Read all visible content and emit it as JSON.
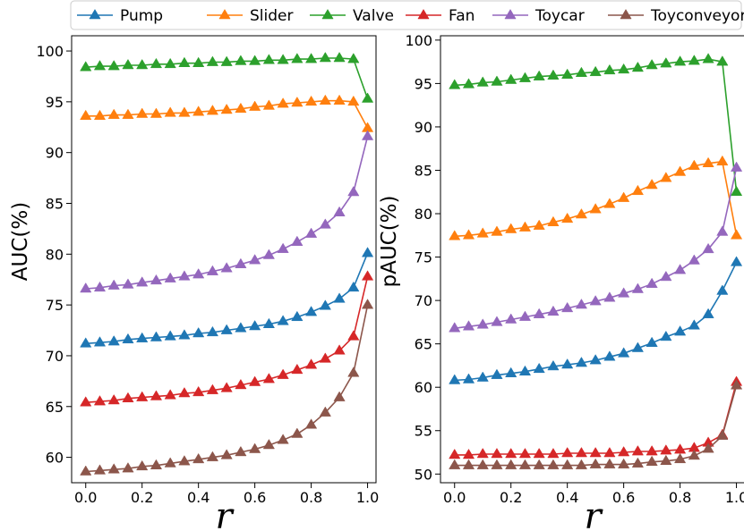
{
  "legend": {
    "entries": [
      {
        "name": "Pump",
        "color": "#1f77b4"
      },
      {
        "name": "Slider",
        "color": "#ff7f0e"
      },
      {
        "name": "Valve",
        "color": "#2ca02c"
      },
      {
        "name": "Fan",
        "color": "#d62728"
      },
      {
        "name": "Toycar",
        "color": "#9467bd"
      },
      {
        "name": "Toyconveyor",
        "color": "#8c564b"
      }
    ],
    "placement": "top-center"
  },
  "chart_data": [
    {
      "type": "line",
      "xlabel": "r",
      "ylabel": "AUC(%)",
      "xlim": [
        -0.05,
        1.03
      ],
      "ylim": [
        57.5,
        101.5
      ],
      "xticks": [
        "0.0",
        "0.2",
        "0.4",
        "0.6",
        "0.8",
        "1.0"
      ],
      "yticks": [
        "60",
        "65",
        "70",
        "75",
        "80",
        "85",
        "90",
        "95",
        "100"
      ],
      "marker": "triangle",
      "grid": false,
      "x": [
        0.0,
        0.05,
        0.1,
        0.15,
        0.2,
        0.25,
        0.3,
        0.35,
        0.4,
        0.45,
        0.5,
        0.55,
        0.6,
        0.65,
        0.7,
        0.75,
        0.8,
        0.85,
        0.9,
        0.95,
        1.0
      ],
      "series": [
        {
          "name": "Pump",
          "color": "#1f77b4",
          "values": [
            71.2,
            71.3,
            71.4,
            71.6,
            71.7,
            71.8,
            71.9,
            72.0,
            72.2,
            72.3,
            72.5,
            72.7,
            72.9,
            73.1,
            73.4,
            73.8,
            74.3,
            74.9,
            75.6,
            76.7,
            80.1
          ]
        },
        {
          "name": "Slider",
          "color": "#ff7f0e",
          "values": [
            93.6,
            93.6,
            93.7,
            93.7,
            93.8,
            93.8,
            93.9,
            93.9,
            94.0,
            94.1,
            94.2,
            94.3,
            94.5,
            94.6,
            94.8,
            94.9,
            95.0,
            95.1,
            95.1,
            95.0,
            92.4
          ]
        },
        {
          "name": "Valve",
          "color": "#2ca02c",
          "values": [
            98.4,
            98.5,
            98.5,
            98.6,
            98.6,
            98.7,
            98.7,
            98.8,
            98.8,
            98.9,
            98.9,
            99.0,
            99.0,
            99.1,
            99.1,
            99.2,
            99.2,
            99.3,
            99.3,
            99.2,
            95.3
          ]
        },
        {
          "name": "Fan",
          "color": "#d62728",
          "values": [
            65.4,
            65.5,
            65.6,
            65.8,
            65.9,
            66.0,
            66.1,
            66.3,
            66.4,
            66.6,
            66.8,
            67.1,
            67.4,
            67.7,
            68.1,
            68.6,
            69.1,
            69.7,
            70.5,
            71.9,
            77.8
          ]
        },
        {
          "name": "Toycar",
          "color": "#9467bd",
          "values": [
            76.6,
            76.7,
            76.9,
            77.0,
            77.2,
            77.4,
            77.6,
            77.8,
            78.0,
            78.3,
            78.6,
            79.0,
            79.4,
            79.9,
            80.5,
            81.2,
            82.0,
            82.9,
            84.1,
            86.1,
            91.6
          ]
        },
        {
          "name": "Toyconveyor",
          "color": "#8c564b",
          "values": [
            58.6,
            58.7,
            58.8,
            58.9,
            59.1,
            59.2,
            59.4,
            59.6,
            59.8,
            60.0,
            60.2,
            60.5,
            60.8,
            61.2,
            61.7,
            62.3,
            63.2,
            64.4,
            65.9,
            68.3,
            75.0
          ]
        }
      ]
    },
    {
      "type": "line",
      "xlabel": "r",
      "ylabel": "pAUC(%)",
      "xlim": [
        -0.05,
        1.03
      ],
      "ylim": [
        49,
        100.5
      ],
      "xticks": [
        "0.0",
        "0.2",
        "0.4",
        "0.6",
        "0.8",
        "1.0"
      ],
      "yticks": [
        "50",
        "55",
        "60",
        "65",
        "70",
        "75",
        "80",
        "85",
        "90",
        "95",
        "100"
      ],
      "marker": "triangle",
      "grid": false,
      "x": [
        0.0,
        0.05,
        0.1,
        0.15,
        0.2,
        0.25,
        0.3,
        0.35,
        0.4,
        0.45,
        0.5,
        0.55,
        0.6,
        0.65,
        0.7,
        0.75,
        0.8,
        0.85,
        0.9,
        0.95,
        1.0
      ],
      "series": [
        {
          "name": "Pump",
          "color": "#1f77b4",
          "values": [
            60.8,
            60.9,
            61.1,
            61.4,
            61.6,
            61.8,
            62.1,
            62.4,
            62.6,
            62.8,
            63.1,
            63.5,
            63.9,
            64.5,
            65.1,
            65.8,
            66.4,
            67.1,
            68.4,
            71.1,
            74.4
          ]
        },
        {
          "name": "Slider",
          "color": "#ff7f0e",
          "values": [
            77.4,
            77.5,
            77.7,
            77.9,
            78.2,
            78.4,
            78.6,
            79.0,
            79.4,
            79.9,
            80.5,
            81.1,
            81.8,
            82.6,
            83.3,
            84.1,
            84.8,
            85.5,
            85.8,
            86.0,
            77.5
          ]
        },
        {
          "name": "Valve",
          "color": "#2ca02c",
          "values": [
            94.8,
            94.9,
            95.1,
            95.2,
            95.4,
            95.6,
            95.8,
            95.9,
            96.0,
            96.2,
            96.3,
            96.5,
            96.6,
            96.8,
            97.1,
            97.3,
            97.5,
            97.6,
            97.8,
            97.5,
            82.5
          ]
        },
        {
          "name": "Fan",
          "color": "#d62728",
          "values": [
            52.2,
            52.2,
            52.3,
            52.3,
            52.3,
            52.3,
            52.3,
            52.3,
            52.4,
            52.4,
            52.4,
            52.4,
            52.5,
            52.6,
            52.6,
            52.7,
            52.8,
            53.0,
            53.6,
            54.5,
            60.6
          ]
        },
        {
          "name": "Toycar",
          "color": "#9467bd",
          "values": [
            66.8,
            67.0,
            67.2,
            67.5,
            67.8,
            68.1,
            68.4,
            68.7,
            69.1,
            69.5,
            69.9,
            70.3,
            70.8,
            71.3,
            71.9,
            72.7,
            73.5,
            74.6,
            75.9,
            77.9,
            85.3
          ]
        },
        {
          "name": "Toyconveyor",
          "color": "#8c564b",
          "values": [
            51.0,
            51.0,
            51.0,
            51.0,
            51.0,
            51.0,
            51.0,
            51.0,
            51.0,
            51.0,
            51.1,
            51.1,
            51.1,
            51.2,
            51.4,
            51.5,
            51.7,
            52.1,
            52.9,
            54.4,
            60.2
          ]
        }
      ]
    }
  ]
}
